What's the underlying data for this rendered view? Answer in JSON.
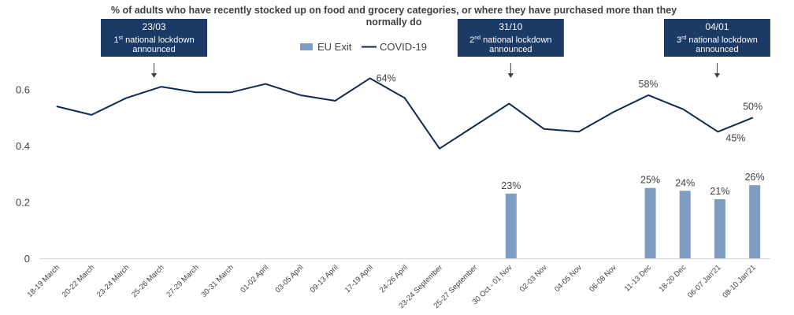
{
  "chart_data": {
    "type": "bar+line",
    "title_line1": "% of adults who have recently stocked up on food and grocery categories, or where they have purchased more than they",
    "title_line2": "normally do",
    "categories": [
      "18-19 March",
      "20-22 March",
      "23-24 March",
      "25-26 March",
      "27-29 March",
      "30-31 March",
      "01-02 April",
      "03-05 April",
      "09-13 April",
      "17-19 April",
      "24-26 April",
      "23-24 September",
      "25-27 September",
      "30 Oct - 01 Nov",
      "02-03 Nov",
      "04-05 Nov",
      "06-08 Nov",
      "11-13 Dec",
      "18-20 Dec",
      "06-07 Jan'21",
      "08-10 Jan'21"
    ],
    "series": [
      {
        "name": "EU Exit",
        "type": "bar",
        "color": "#7f9cc2",
        "values": [
          null,
          null,
          null,
          null,
          null,
          null,
          null,
          null,
          null,
          null,
          null,
          null,
          null,
          0.23,
          null,
          null,
          null,
          0.25,
          0.24,
          0.21,
          0.26
        ],
        "labels": [
          null,
          null,
          null,
          null,
          null,
          null,
          null,
          null,
          null,
          null,
          null,
          null,
          null,
          "23%",
          null,
          null,
          null,
          "25%",
          "24%",
          "21%",
          "26%"
        ]
      },
      {
        "name": "COVID-19",
        "type": "line",
        "color": "#0d2a52",
        "values": [
          0.54,
          0.51,
          0.57,
          0.61,
          0.59,
          0.59,
          0.62,
          0.58,
          0.56,
          0.64,
          0.57,
          0.39,
          0.47,
          0.55,
          0.46,
          0.45,
          0.52,
          0.58,
          0.53,
          0.45,
          0.5
        ],
        "labels": [
          null,
          null,
          null,
          null,
          null,
          null,
          null,
          null,
          null,
          "64%",
          null,
          null,
          null,
          null,
          null,
          null,
          null,
          "58%",
          null,
          "45%",
          "50%"
        ]
      }
    ],
    "yticks": [
      "0",
      "0.2",
      "0.4",
      "0.6"
    ],
    "ylim": [
      0,
      0.7
    ],
    "legend_position": "top-center",
    "grid": false,
    "annotations": [
      {
        "category_index": 3,
        "date": "23/03",
        "ordinal_num": "1",
        "ordinal_sup": "st",
        "line1_rest": " national lockdown",
        "line2": "announced"
      },
      {
        "category_index": 13,
        "date": "31/10",
        "ordinal_num": "2",
        "ordinal_sup": "nd",
        "line1_rest": " national lockdown",
        "line2": "announced"
      },
      {
        "category_index": 19,
        "date": "04/01",
        "ordinal_num": "3",
        "ordinal_sup": "rd",
        "line1_rest": " national lockdown",
        "line2": "announced"
      }
    ],
    "callout_color": "#1b3a66"
  }
}
